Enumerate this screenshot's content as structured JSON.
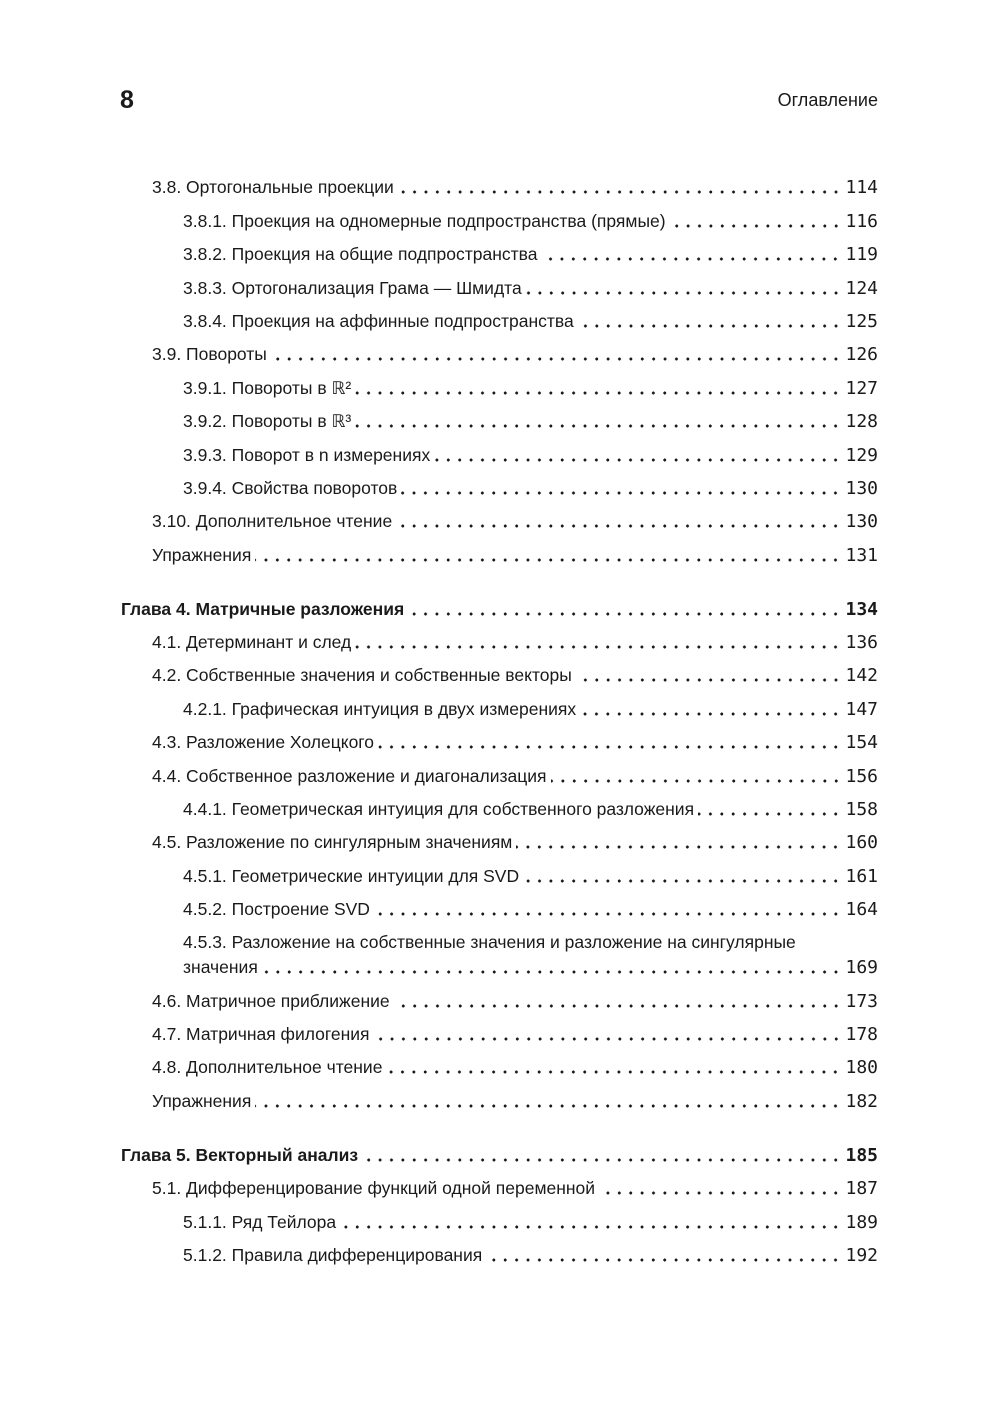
{
  "header": {
    "page_number": "8",
    "running_title": "Оглавление"
  },
  "toc": [
    {
      "level": 2,
      "title": "3.8. Ортогональные проекции",
      "page": "114"
    },
    {
      "level": 3,
      "title": "3.8.1. Проекция на одномерные подпространства (прямые)",
      "page": "116"
    },
    {
      "level": 3,
      "title": "3.8.2. Проекция на общие подпространства",
      "page": "119"
    },
    {
      "level": 3,
      "title": "3.8.3. Ортогонализация Грама — Шмидта",
      "page": "124"
    },
    {
      "level": 3,
      "title": "3.8.4. Проекция на аффинные подпространства",
      "page": "125"
    },
    {
      "level": 2,
      "title": "3.9. Повороты",
      "page": "126"
    },
    {
      "level": 3,
      "title": "3.9.1. Повороты в ℝ²",
      "page": "127"
    },
    {
      "level": 3,
      "title": "3.9.2. Повороты в ℝ³",
      "page": "128"
    },
    {
      "level": 3,
      "title": "3.9.3. Поворот в n измерениях",
      "page": "129"
    },
    {
      "level": 3,
      "title": "3.9.4. Свойства поворотов",
      "page": "130"
    },
    {
      "level": 2,
      "title": "3.10. Дополнительное чтение",
      "page": "130"
    },
    {
      "level": 2,
      "title": "Упражнения",
      "page": "131"
    },
    {
      "level": 1,
      "title": "Глава 4. Матричные разложения",
      "page": "134"
    },
    {
      "level": 2,
      "title": "4.1. Детерминант и след",
      "page": "136"
    },
    {
      "level": 2,
      "title": "4.2. Собственные значения и собственные векторы",
      "page": "142"
    },
    {
      "level": 3,
      "title": "4.2.1. Графическая интуиция в двух измерениях",
      "page": "147"
    },
    {
      "level": 2,
      "title": "4.3. Разложение Холецкого",
      "page": "154"
    },
    {
      "level": 2,
      "title": "4.4. Собственное разложение и диагонализация",
      "page": "156"
    },
    {
      "level": 3,
      "title": "4.4.1. Геометрическая интуиция для собственного разложения",
      "page": "158"
    },
    {
      "level": 2,
      "title": "4.5. Разложение по сингулярным значениям",
      "page": "160"
    },
    {
      "level": 3,
      "title": "4.5.1. Геометрические интуиции для SVD",
      "page": "161"
    },
    {
      "level": 3,
      "title": "4.5.2. Построение SVD",
      "page": "164"
    },
    {
      "level": 3,
      "title": "4.5.3. Разложение на собственные значения и разложение на сингулярные",
      "title_cont": "значения",
      "page": "169"
    },
    {
      "level": 2,
      "title": "4.6. Матричное приближение",
      "page": "173"
    },
    {
      "level": 2,
      "title": "4.7. Матричная филогения",
      "page": "178"
    },
    {
      "level": 2,
      "title": "4.8. Дополнительное чтение",
      "page": "180"
    },
    {
      "level": 2,
      "title": "Упражнения",
      "page": "182"
    },
    {
      "level": 1,
      "title": "Глава 5. Векторный анализ",
      "page": "185"
    },
    {
      "level": 2,
      "title": "5.1. Дифференцирование функций одной переменной",
      "page": "187"
    },
    {
      "level": 3,
      "title": "5.1.1. Ряд Тейлора",
      "page": "189"
    },
    {
      "level": 3,
      "title": "5.1.2. Правила дифференцирования",
      "page": "192"
    }
  ]
}
